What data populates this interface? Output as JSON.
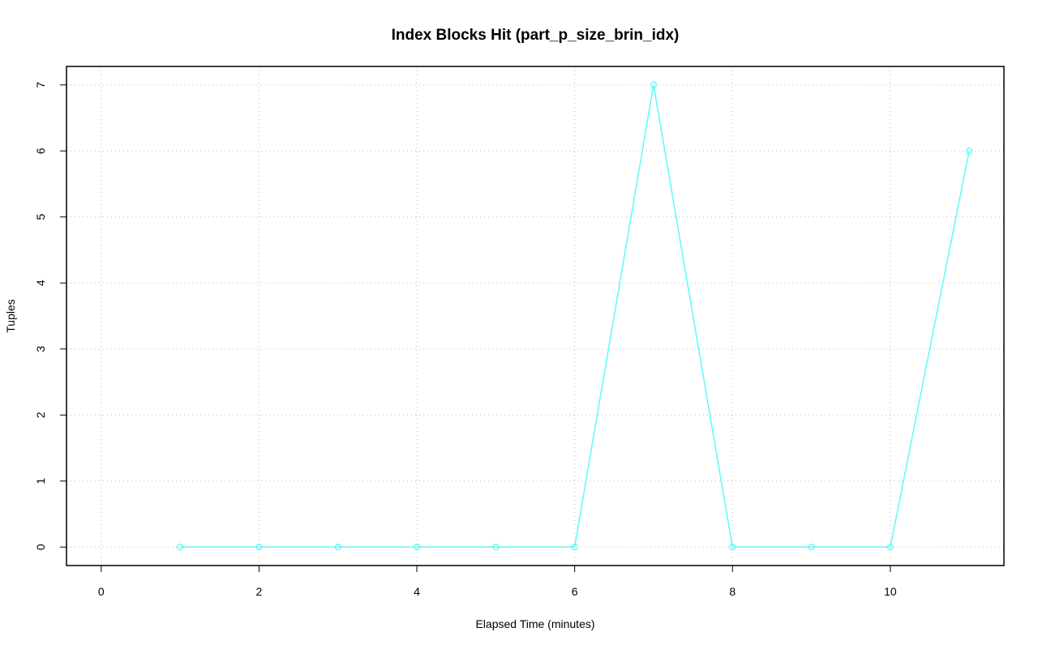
{
  "chart_data": {
    "type": "line",
    "title": "Index Blocks Hit (part_p_size_brin_idx)",
    "x_label": "Elapsed Time (minutes)",
    "y_label": "Tuples",
    "x": [
      1,
      2,
      3,
      4,
      5,
      6,
      7,
      8,
      9,
      10,
      11
    ],
    "series": [
      {
        "color": "#5ff8f8",
        "values": [
          0,
          0,
          0,
          0,
          0,
          0,
          7,
          0,
          0,
          0,
          6
        ]
      }
    ],
    "xlim": [
      -0.44,
      11.44
    ],
    "xticks": [
      0,
      2,
      4,
      6,
      8,
      10
    ],
    "ylim": [
      -0.28,
      7.28
    ],
    "yticks": [
      0,
      1,
      2,
      3,
      4,
      5,
      6,
      7
    ],
    "grid": true,
    "markers": true
  }
}
